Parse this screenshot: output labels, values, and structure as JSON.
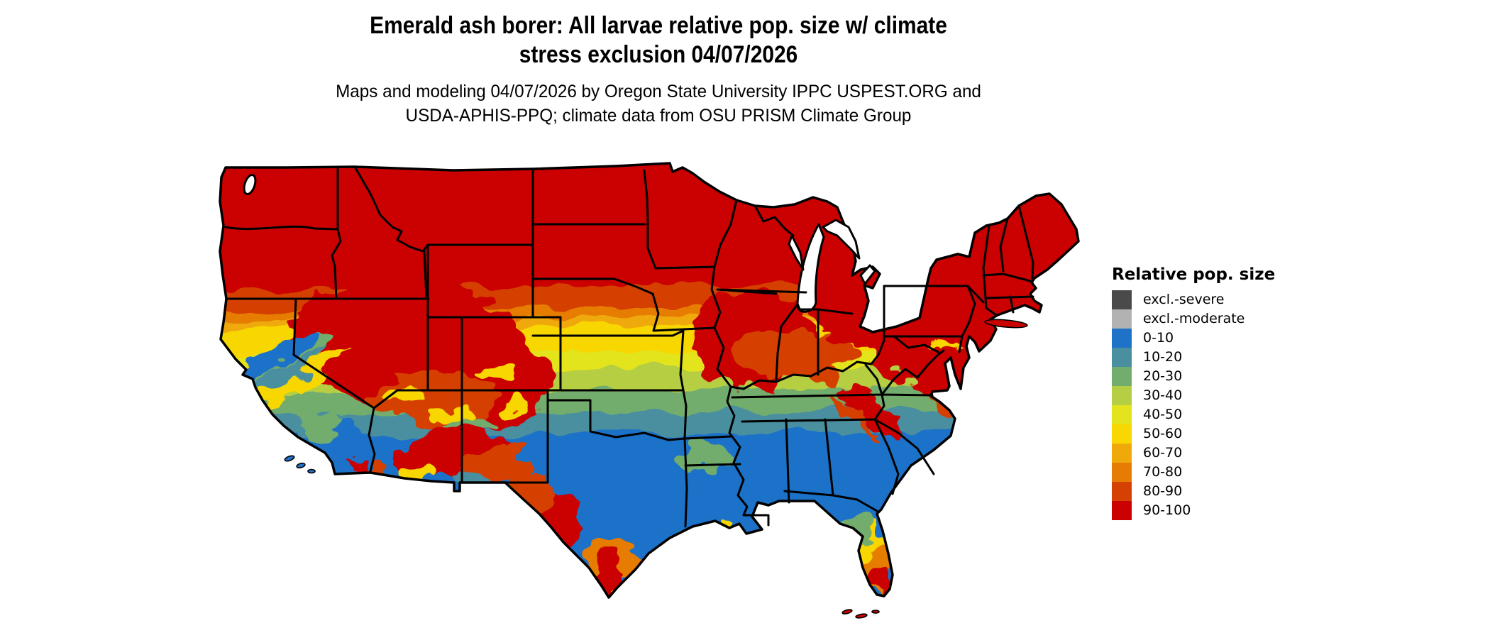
{
  "title": {
    "line1": "Emerald ash borer: All larvae relative pop. size w/ climate",
    "line2": "stress exclusion 04/07/2026"
  },
  "subtitle": {
    "line1": "Maps and modeling 04/07/2026 by Oregon State University IPPC USPEST.ORG and",
    "line2": "USDA-APHIS-PPQ; climate data from OSU PRISM Climate Group"
  },
  "legend": {
    "title": "Relative pop. size",
    "items": [
      {
        "label": "excl.-severe",
        "color": "#4a4a4a"
      },
      {
        "label": "excl.-moderate",
        "color": "#b2b2b2"
      },
      {
        "label": "0-10",
        "color": "#1e72c8"
      },
      {
        "label": "10-20",
        "color": "#4a8f9f"
      },
      {
        "label": "20-30",
        "color": "#72ad6d"
      },
      {
        "label": "30-40",
        "color": "#b5ce43"
      },
      {
        "label": "40-50",
        "color": "#e3e41e"
      },
      {
        "label": "50-60",
        "color": "#f8d702"
      },
      {
        "label": "60-70",
        "color": "#f0a90b"
      },
      {
        "label": "70-80",
        "color": "#e67c04"
      },
      {
        "label": "80-90",
        "color": "#d54103"
      },
      {
        "label": "90-100",
        "color": "#cb0100"
      }
    ]
  },
  "map": {
    "region": "Contiguous United States",
    "kind": "raster choropleth of relative population size with state borders"
  }
}
